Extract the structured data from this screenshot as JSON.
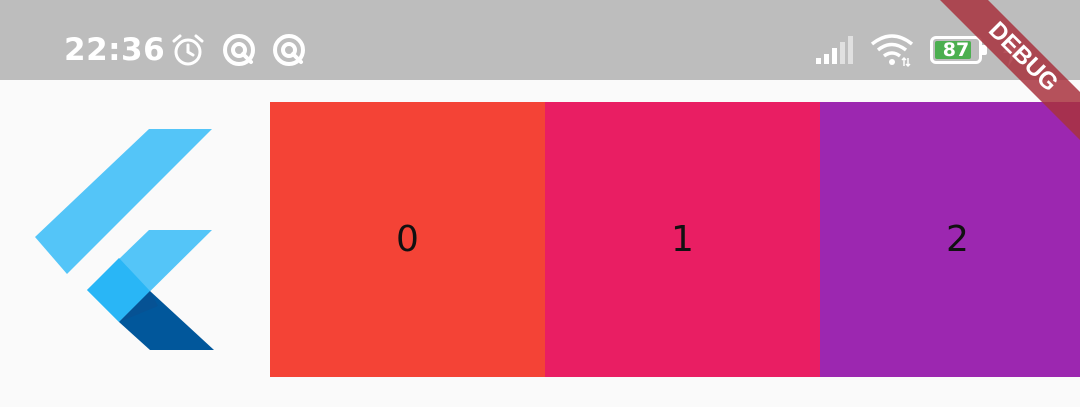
{
  "status_bar": {
    "time": "22:36",
    "icons": [
      "alarm-icon",
      "app-notification-icon",
      "app-notification-icon",
      "signal-icon",
      "wifi-icon"
    ],
    "battery_level": "87",
    "charging": true
  },
  "app": {
    "logo": "flutter-logo",
    "tiles": [
      {
        "label": "0",
        "color": "#f44336"
      },
      {
        "label": "1",
        "color": "#e91e63"
      },
      {
        "label": "2",
        "color": "#9c27b0"
      }
    ]
  },
  "debug_banner": {
    "label": "DEBUG",
    "color": "#a8323e"
  }
}
